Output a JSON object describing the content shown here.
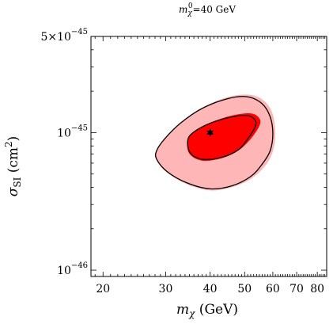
{
  "chart_data": {
    "type": "scatter",
    "title": {
      "base": "m",
      "base_sub": "χ",
      "base_sup": "0",
      "rest": "=40 GeV"
    },
    "xlabel": {
      "base": "m",
      "sub": "χ",
      "rest": " (GeV)"
    },
    "ylabel": {
      "base": "σ",
      "sub": "SI",
      "rest": " (cm",
      "sup": "2",
      "close": ")"
    },
    "x_scale": "log",
    "y_scale": "log",
    "xlim": [
      18.5,
      85
    ],
    "ylim": [
      9e-47,
      5e-45
    ],
    "x_ticks": [
      {
        "value": 20,
        "label": "20"
      },
      {
        "value": 30,
        "label": "30"
      },
      {
        "value": 40,
        "label": "40"
      },
      {
        "value": 50,
        "label": "50"
      },
      {
        "value": 60,
        "label": "60"
      },
      {
        "value": 70,
        "label": "70"
      },
      {
        "value": 80,
        "label": "80"
      }
    ],
    "y_ticks": [
      {
        "value": 1e-46,
        "mantissa": "",
        "base": "10",
        "exp": "−46"
      },
      {
        "value": 1e-45,
        "mantissa": "",
        "base": "10",
        "exp": "−45"
      },
      {
        "value": 5e-45,
        "mantissa": "5×",
        "base": "10",
        "exp": "−45"
      }
    ],
    "grid": false,
    "regions": [
      {
        "name": "outer-confidence-region",
        "fill": "#ffb6b6",
        "points": [
          [
            28.2,
            6.4e-46
          ],
          [
            30.3,
            5.1e-46
          ],
          [
            34.5,
            4.2e-46
          ],
          [
            40,
            3.8e-46
          ],
          [
            46,
            4e-46
          ],
          [
            52,
            4.6e-46
          ],
          [
            57,
            5.7e-46
          ],
          [
            60,
            7.3e-46
          ],
          [
            61,
            9.8e-46
          ],
          [
            60,
            1.35e-45
          ],
          [
            57,
            1.68e-45
          ],
          [
            52,
            1.88e-45
          ],
          [
            45,
            1.82e-45
          ],
          [
            38,
            1.52e-45
          ],
          [
            33,
            1.18e-45
          ],
          [
            29.8,
            9e-46
          ],
          [
            28.2,
            7.4e-46
          ]
        ]
      },
      {
        "name": "outer-contour",
        "fill": "none",
        "stroke": "#000000",
        "points": [
          [
            28.3,
            6.4e-46
          ],
          [
            30.3,
            5.2e-46
          ],
          [
            34.5,
            4.3e-46
          ],
          [
            40,
            3.9e-46
          ],
          [
            46,
            4.1e-46
          ],
          [
            52,
            4.8e-46
          ],
          [
            56,
            5.9e-46
          ],
          [
            59,
            7.4e-46
          ],
          [
            60,
            9.8e-46
          ],
          [
            59,
            1.3e-45
          ],
          [
            56,
            1.62e-45
          ],
          [
            51,
            1.82e-45
          ],
          [
            45,
            1.77e-45
          ],
          [
            38,
            1.5e-45
          ],
          [
            33,
            1.17e-45
          ],
          [
            29.8,
            9e-46
          ],
          [
            28.3,
            7.4e-46
          ]
        ]
      },
      {
        "name": "inner-confidence-region",
        "fill": "#ff0000",
        "points": [
          [
            34.5,
            8.8e-46
          ],
          [
            35,
            7e-46
          ],
          [
            38,
            6.25e-46
          ],
          [
            43,
            6.5e-46
          ],
          [
            48,
            7.4e-46
          ],
          [
            52,
            9e-46
          ],
          [
            55,
            1.12e-45
          ],
          [
            55,
            1.27e-45
          ],
          [
            52,
            1.38e-45
          ],
          [
            46,
            1.33e-45
          ],
          [
            40,
            1.18e-45
          ],
          [
            36,
            1.02e-45
          ]
        ]
      },
      {
        "name": "inner-contour",
        "fill": "none",
        "stroke": "#000000",
        "points": [
          [
            34.6,
            8.8e-46
          ],
          [
            35.2,
            7.1e-46
          ],
          [
            38,
            6.4e-46
          ],
          [
            43,
            6.6e-46
          ],
          [
            48,
            7.5e-46
          ],
          [
            51,
            9e-46
          ],
          [
            53.5,
            1.1e-45
          ],
          [
            53.5,
            1.23e-45
          ],
          [
            51,
            1.33e-45
          ],
          [
            46,
            1.3e-45
          ],
          [
            40,
            1.17e-45
          ],
          [
            36,
            1.01e-45
          ]
        ]
      }
    ],
    "points": [
      {
        "name": "best-fit-marker",
        "x": 40,
        "y": 1e-45,
        "marker": "six-point-star"
      }
    ]
  }
}
